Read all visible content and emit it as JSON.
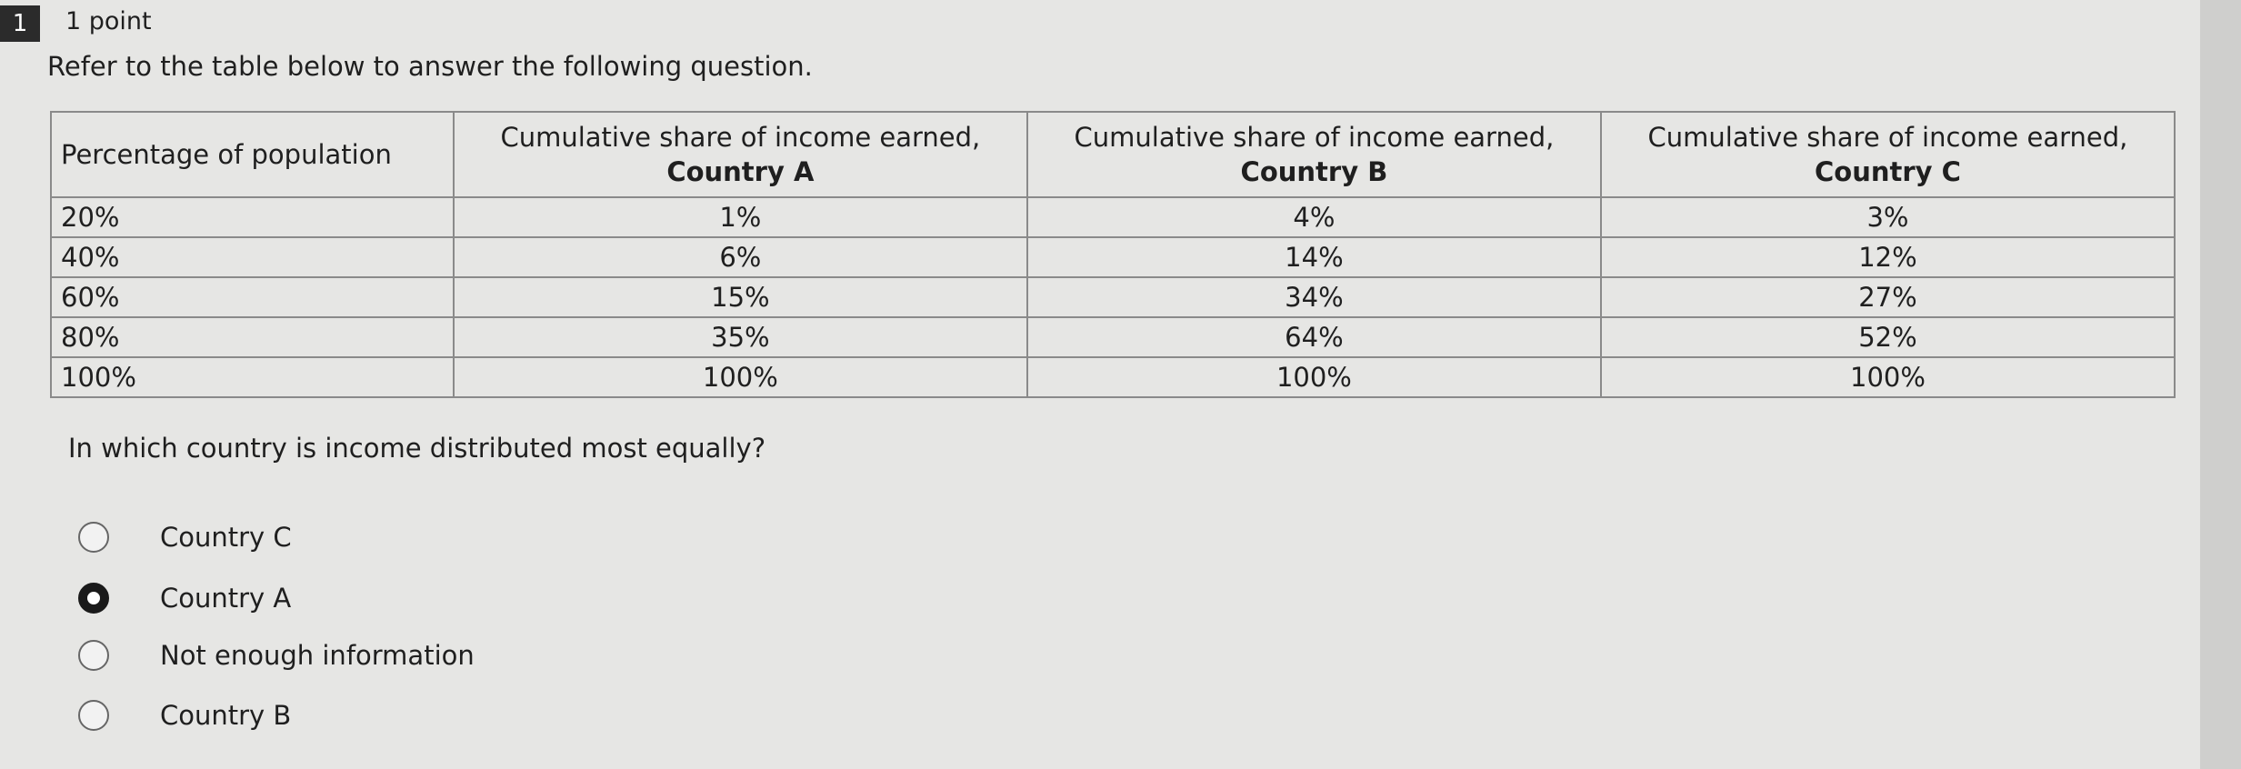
{
  "header": {
    "number": "1",
    "points": "1 point"
  },
  "prompt": "Refer to the table below to answer the following question.",
  "table": {
    "columns": [
      {
        "text": "Percentage of population"
      },
      {
        "text": "Cumulative share of income earned,",
        "country": "Country A"
      },
      {
        "text": "Cumulative share of income earned,",
        "country": "Country B"
      },
      {
        "text": "Cumulative share of income earned,",
        "country": "Country C"
      }
    ],
    "rows": [
      [
        "20%",
        "1%",
        "4%",
        "3%"
      ],
      [
        "40%",
        "6%",
        "14%",
        "12%"
      ],
      [
        "60%",
        "15%",
        "34%",
        "27%"
      ],
      [
        "80%",
        "35%",
        "64%",
        "52%"
      ],
      [
        "100%",
        "100%",
        "100%",
        "100%"
      ]
    ]
  },
  "question": "In which country is income distributed most equally?",
  "options": [
    "Country C",
    "Country A",
    "Not enough information",
    "Country B"
  ],
  "selected": 1
}
